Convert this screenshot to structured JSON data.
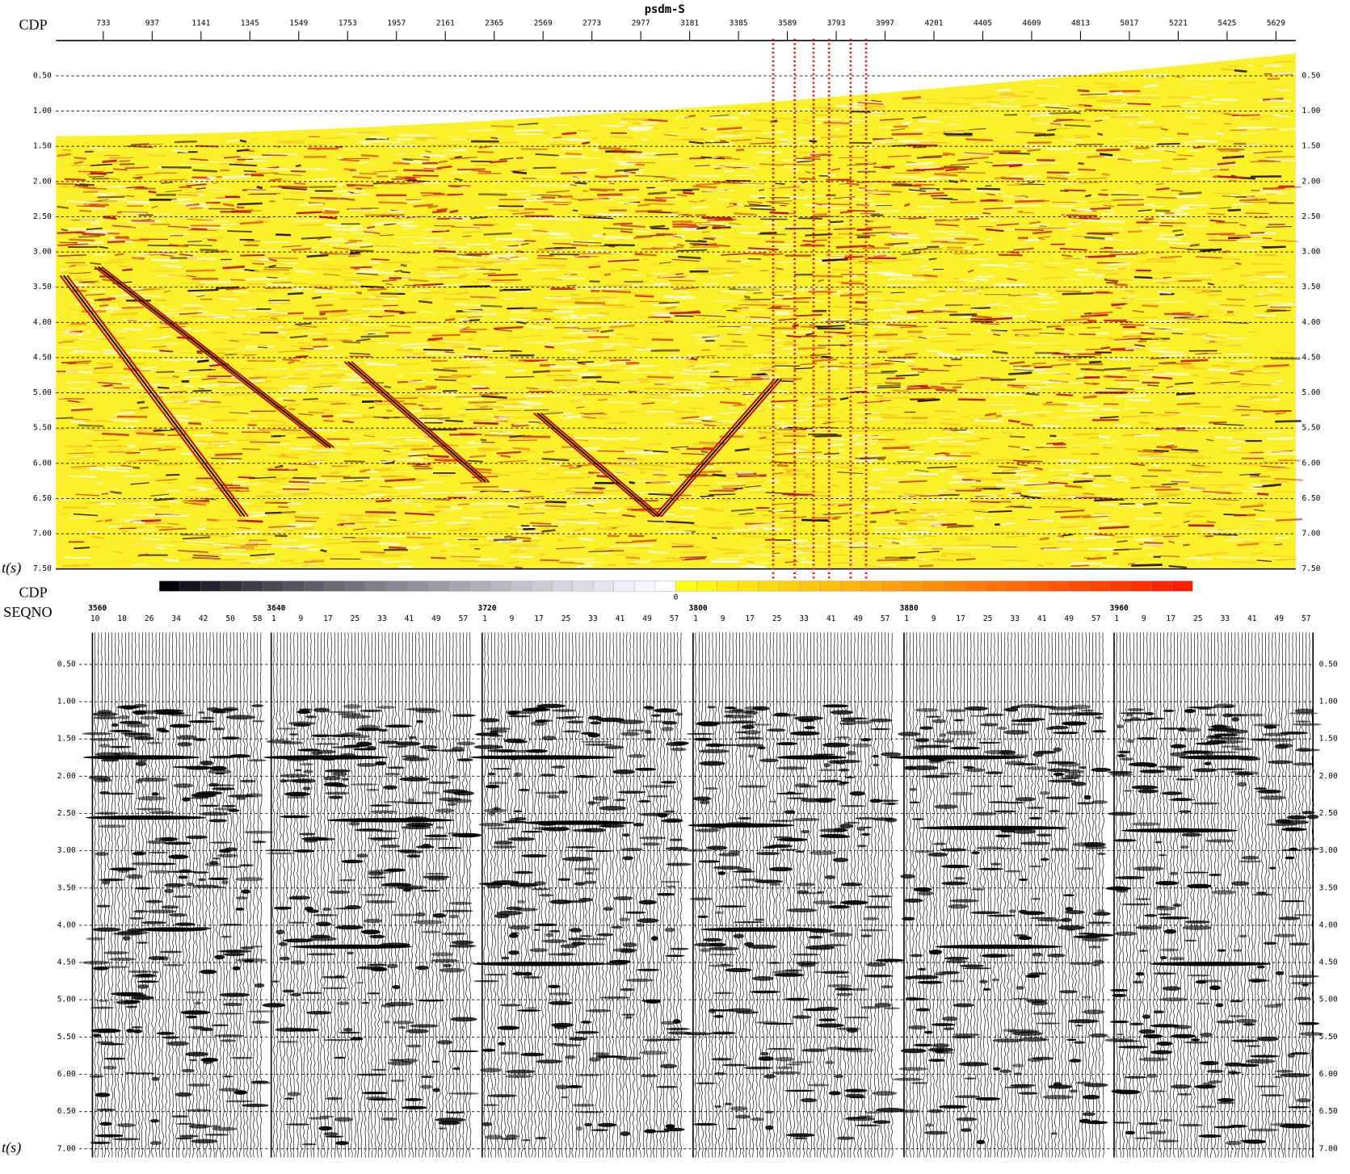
{
  "top_panel": {
    "title": "psdm-S",
    "x_label": "CDP",
    "y_label": "t(s)",
    "cdp_ticks": [
      733,
      937,
      1141,
      1345,
      1549,
      1753,
      1957,
      2161,
      2365,
      2569,
      2773,
      2977,
      3181,
      3385,
      3589,
      3793,
      3997,
      4201,
      4405,
      4609,
      4813,
      5017,
      5221,
      5425,
      5629
    ],
    "time_ticks": [
      "0.50",
      "1.00",
      "1.50",
      "2.00",
      "2.50",
      "3.00",
      "3.50",
      "4.00",
      "4.50",
      "5.00",
      "5.50",
      "6.00",
      "6.50",
      "7.00",
      "7.50"
    ]
  },
  "colorbar": {
    "mid_label": "0"
  },
  "bottom_panel": {
    "x_label": "CDP",
    "x_label2": "SEQNO",
    "y_label": "t(s)",
    "groups": [
      {
        "cdp": "3560",
        "seqno": [
          "10",
          "18",
          "26",
          "34",
          "42",
          "50",
          "58"
        ]
      },
      {
        "cdp": "3640",
        "seqno": [
          "1",
          "9",
          "17",
          "25",
          "33",
          "41",
          "49",
          "57"
        ]
      },
      {
        "cdp": "3720",
        "seqno": [
          "1",
          "9",
          "17",
          "25",
          "33",
          "41",
          "49",
          "57"
        ]
      },
      {
        "cdp": "3800",
        "seqno": [
          "1",
          "9",
          "17",
          "25",
          "33",
          "41",
          "49",
          "57"
        ]
      },
      {
        "cdp": "3880",
        "seqno": [
          "1",
          "9",
          "17",
          "25",
          "33",
          "41",
          "49",
          "57"
        ]
      },
      {
        "cdp": "3960",
        "seqno": [
          "1",
          "9",
          "17",
          "25",
          "33",
          "41",
          "49",
          "57"
        ]
      }
    ],
    "time_ticks": [
      "0.50",
      "1.00",
      "1.50",
      "2.00",
      "2.50",
      "3.00",
      "3.50",
      "4.00",
      "4.50",
      "5.00",
      "5.50",
      "6.00",
      "6.50",
      "7.00"
    ]
  }
}
